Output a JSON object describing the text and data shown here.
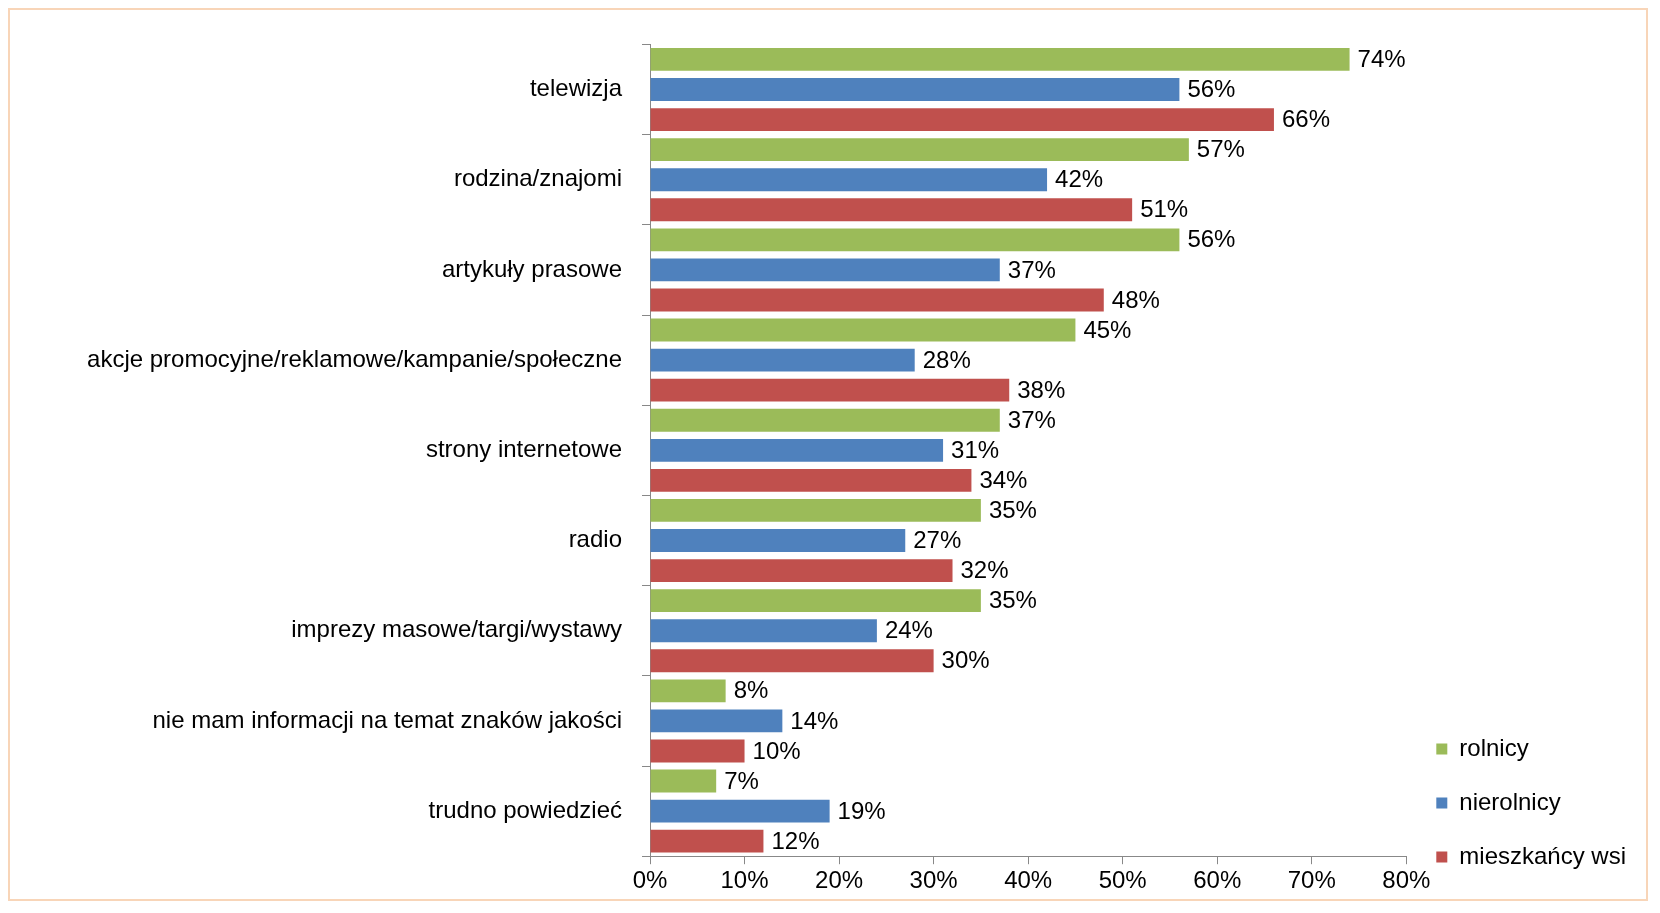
{
  "chart_data": {
    "type": "bar",
    "orientation": "horizontal",
    "categories": [
      "telewizja",
      "rodzina/znajomi",
      "artykuły prasowe",
      "akcje promocyjne/reklamowe/kampanie/społeczne",
      "strony internetowe",
      "radio",
      "imprezy masowe/targi/wystawy",
      "nie mam informacji na temat znaków jakości",
      "trudno powiedzieć"
    ],
    "series": [
      {
        "name": "rolnicy",
        "color": "#9bbb59",
        "values": [
          74,
          57,
          56,
          45,
          37,
          35,
          35,
          8,
          7
        ],
        "value_labels": [
          "74%",
          "57%",
          "56%",
          "45%",
          "37%",
          "35%",
          "35%",
          "8%",
          "7%"
        ]
      },
      {
        "name": "nierolnicy",
        "color": "#4f81bd",
        "values": [
          56,
          42,
          37,
          28,
          31,
          27,
          24,
          14,
          19
        ],
        "value_labels": [
          "56%",
          "42%",
          "37%",
          "28%",
          "31%",
          "27%",
          "24%",
          "14%",
          "19%"
        ]
      },
      {
        "name": "mieszkańcy wsi",
        "color": "#c0504d",
        "values": [
          66,
          51,
          48,
          38,
          34,
          32,
          30,
          10,
          12
        ],
        "value_labels": [
          "66%",
          "51%",
          "48%",
          "38%",
          "34%",
          "32%",
          "30%",
          "10%",
          "12%"
        ]
      }
    ],
    "xlim": [
      0,
      80
    ],
    "xticks": [
      {
        "value": 0,
        "label": "0%"
      },
      {
        "value": 10,
        "label": "10%"
      },
      {
        "value": 20,
        "label": "20%"
      },
      {
        "value": 30,
        "label": "30%"
      },
      {
        "value": 40,
        "label": "40%"
      },
      {
        "value": 50,
        "label": "50%"
      },
      {
        "value": 60,
        "label": "60%"
      },
      {
        "value": 70,
        "label": "70%"
      },
      {
        "value": 80,
        "label": "80%"
      }
    ],
    "grid": false,
    "legend": "right"
  }
}
